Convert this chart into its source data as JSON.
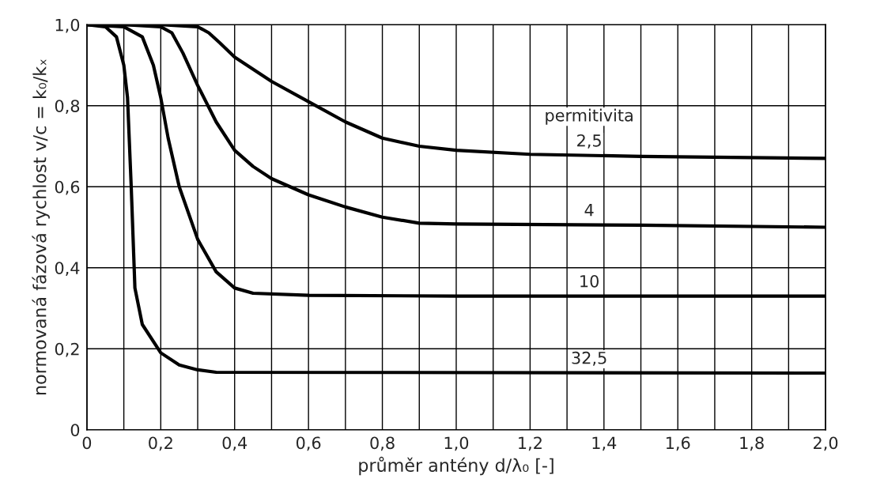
{
  "chart_data": {
    "type": "line",
    "xlabel": "průměr antény d/λ₀ [-]",
    "ylabel": "normovaná fázová rychlost v/c = k₀/kₓ",
    "annotations": [
      "permitivita"
    ],
    "series": [
      {
        "name": "2,5",
        "color": "#000000",
        "x": [
          0,
          0.1,
          0.2,
          0.3,
          0.33,
          0.36,
          0.4,
          0.5,
          0.6,
          0.7,
          0.8,
          0.9,
          1.0,
          1.2,
          1.5,
          2.0
        ],
        "values": [
          1.0,
          1.0,
          1.0,
          0.995,
          0.98,
          0.955,
          0.92,
          0.86,
          0.81,
          0.76,
          0.72,
          0.7,
          0.69,
          0.68,
          0.675,
          0.67
        ]
      },
      {
        "name": "4",
        "color": "#000000",
        "x": [
          0,
          0.1,
          0.2,
          0.23,
          0.26,
          0.3,
          0.35,
          0.4,
          0.45,
          0.5,
          0.6,
          0.7,
          0.8,
          0.9,
          1.0,
          1.5,
          2.0
        ],
        "values": [
          1.0,
          1.0,
          0.995,
          0.98,
          0.93,
          0.85,
          0.76,
          0.69,
          0.65,
          0.62,
          0.58,
          0.55,
          0.525,
          0.51,
          0.508,
          0.505,
          0.5
        ]
      },
      {
        "name": "10",
        "color": "#000000",
        "x": [
          0,
          0.1,
          0.15,
          0.18,
          0.2,
          0.22,
          0.25,
          0.3,
          0.35,
          0.4,
          0.45,
          0.6,
          1.0,
          2.0
        ],
        "values": [
          1.0,
          0.995,
          0.97,
          0.9,
          0.82,
          0.72,
          0.6,
          0.47,
          0.39,
          0.35,
          0.337,
          0.332,
          0.33,
          0.33
        ]
      },
      {
        "name": "32,5",
        "color": "#000000",
        "x": [
          0,
          0.05,
          0.08,
          0.1,
          0.11,
          0.12,
          0.13,
          0.15,
          0.2,
          0.25,
          0.3,
          0.35,
          2.0
        ],
        "values": [
          1.0,
          0.995,
          0.97,
          0.9,
          0.82,
          0.6,
          0.35,
          0.26,
          0.19,
          0.16,
          0.148,
          0.142,
          0.14
        ]
      }
    ],
    "xlim": [
      0,
      2.0
    ],
    "xticks": [
      0,
      {
        "value": 0.1,
        "label": null
      },
      {
        "value": 0.2,
        "label": "0,2"
      },
      {
        "value": 0.3,
        "label": null
      },
      {
        "value": 0.4,
        "label": "0,4"
      },
      {
        "value": 0.5,
        "label": null
      },
      {
        "value": 0.6,
        "label": "0,6"
      },
      {
        "value": 0.7,
        "label": null
      },
      {
        "value": 0.8,
        "label": "0,8"
      },
      {
        "value": 0.9,
        "label": null
      },
      {
        "value": 1.0,
        "label": "1,0"
      },
      {
        "value": 1.1,
        "label": null
      },
      {
        "value": 1.2,
        "label": "1,2"
      },
      {
        "value": 1.3,
        "label": null
      },
      {
        "value": 1.4,
        "label": "1,4"
      },
      {
        "value": 1.5,
        "label": null
      },
      {
        "value": 1.6,
        "label": "1,6"
      },
      {
        "value": 1.7,
        "label": null
      },
      {
        "value": 1.8,
        "label": "1,8"
      },
      {
        "value": 1.9,
        "label": null
      },
      {
        "value": 2.0,
        "label": "2,0"
      }
    ],
    "ylim": [
      0,
      1.0
    ],
    "yticks": [
      0,
      {
        "value": 0.2,
        "label": "0,2"
      },
      {
        "value": 0.4,
        "label": "0,4"
      },
      {
        "value": 0.6,
        "label": "0,6"
      },
      {
        "value": 0.8,
        "label": "0,8"
      },
      {
        "value": 1.0,
        "label": "1,0"
      }
    ],
    "grid": true,
    "legend": false,
    "marker": "none",
    "line_style": "solid"
  }
}
